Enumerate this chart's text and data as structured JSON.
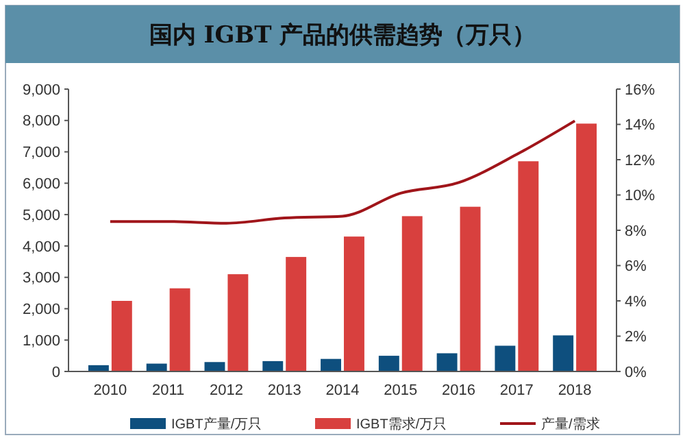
{
  "chart_data": {
    "type": "bar",
    "title": "国内 IGBT 产品的供需趋势（万只）",
    "categories": [
      "2010",
      "2011",
      "2012",
      "2013",
      "2014",
      "2015",
      "2016",
      "2017",
      "2018"
    ],
    "series": [
      {
        "name": "IGBT产量/万只",
        "color": "#0e4f7e",
        "values": [
          200,
          250,
          300,
          330,
          400,
          500,
          580,
          820,
          1150
        ]
      },
      {
        "name": "IGBT需求/万只",
        "color": "#d8403e",
        "values": [
          2250,
          2650,
          3100,
          3650,
          4300,
          4950,
          5250,
          6700,
          7900
        ]
      },
      {
        "name": "产量/需求",
        "type": "line",
        "axis": "y2",
        "color": "#a0151a",
        "values": [
          8.5,
          8.5,
          8.4,
          8.7,
          8.8,
          10.1,
          10.7,
          12.3,
          14.2
        ]
      }
    ],
    "ylim": [
      0,
      9000
    ],
    "yticks": [
      {
        "value": 0,
        "label": "0"
      },
      {
        "value": 1000,
        "label": "1,000"
      },
      {
        "value": 2000,
        "label": "2,000"
      },
      {
        "value": 3000,
        "label": "3,000"
      },
      {
        "value": 4000,
        "label": "4,000"
      },
      {
        "value": 5000,
        "label": "5,000"
      },
      {
        "value": 6000,
        "label": "6,000"
      },
      {
        "value": 7000,
        "label": "7,000"
      },
      {
        "value": 8000,
        "label": "8,000"
      },
      {
        "value": 9000,
        "label": "9,000"
      }
    ],
    "y2lim": [
      0,
      16
    ],
    "y2ticks": [
      {
        "value": 0,
        "label": "0%"
      },
      {
        "value": 2,
        "label": "2%"
      },
      {
        "value": 4,
        "label": "4%"
      },
      {
        "value": 6,
        "label": "6%"
      },
      {
        "value": 8,
        "label": "8%"
      },
      {
        "value": 10,
        "label": "10%"
      },
      {
        "value": 12,
        "label": "12%"
      },
      {
        "value": 14,
        "label": "14%"
      },
      {
        "value": 16,
        "label": "16%"
      }
    ],
    "legend": "bottom",
    "grid": false
  }
}
